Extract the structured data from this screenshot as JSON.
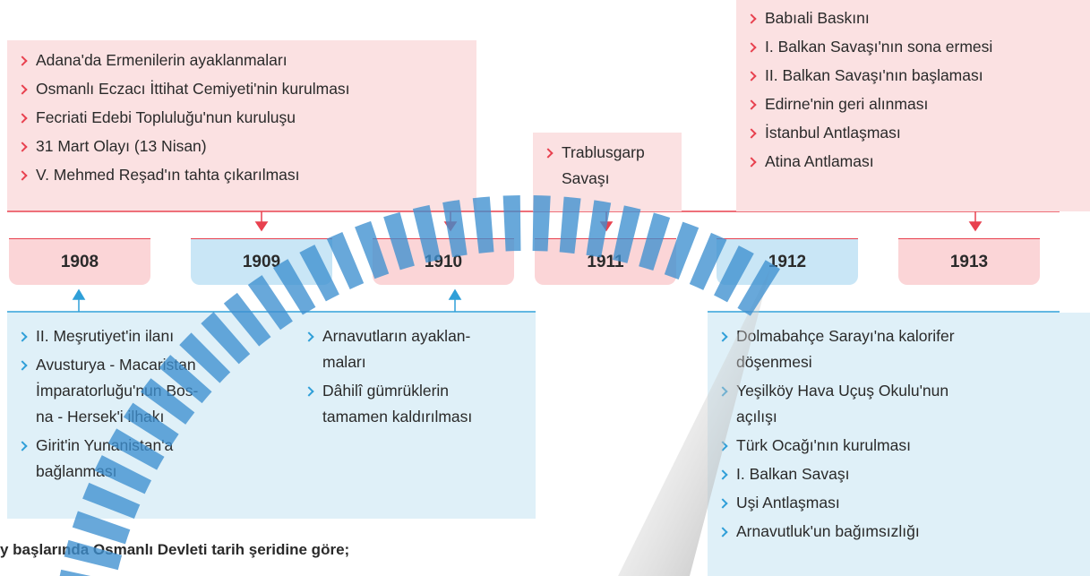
{
  "top_events": [
    {
      "items": [
        [
          "Adana'da Ermenilerin ayaklanmaları"
        ],
        [
          "Osmanlı Eczacı İttihat Cemiyeti'nin kurulması"
        ],
        [
          "Fecriati Edebi Topluluğu'nun kuruluşu"
        ],
        [
          "31 Mart Olayı (13 Nisan)"
        ],
        [
          "V. Mehmed Reşad'ın tahta çıkarılması"
        ]
      ]
    },
    {
      "items": [
        [
          "Trablusgarp",
          "Savaşı"
        ]
      ]
    },
    {
      "items": [
        [
          "Babıali Baskını"
        ],
        [
          "I. Balkan Savaşı'nın sona ermesi"
        ],
        [
          "II. Balkan Savaşı'nın başlaması"
        ],
        [
          "Edirne'nin geri alınması"
        ],
        [
          "İstanbul Antlaşması"
        ],
        [
          "Atina Antlaması"
        ]
      ]
    }
  ],
  "years": [
    "1908",
    "1909",
    "1910",
    "1911",
    "1912",
    "1913"
  ],
  "bottom_events": [
    {
      "columns": [
        [
          [
            "II. Meşrutiyet'in ilanı"
          ],
          [
            "Avusturya - Macaristan",
            "İmparatorluğu'nun Bos-",
            "na - Hersek'i ilhakı"
          ],
          [
            "Girit'in Yunanistan'a",
            "bağlanması"
          ]
        ],
        [
          [
            "Arnavutların ayaklan-",
            "maları"
          ],
          [
            "Dâhilî gümrüklerin",
            "tamamen kaldırılması"
          ]
        ]
      ]
    },
    {
      "columns": [
        [
          [
            "Dolmabahçe Sarayı'na kalorifer",
            "döşenmesi"
          ],
          [
            "Yeşilköy Hava Uçuş Okulu'nun",
            "açılışı"
          ],
          [
            "Türk Ocağı'nın kurulması"
          ],
          [
            "I. Balkan Savaşı"
          ],
          [
            "Uşi Antlaşması"
          ],
          [
            "Arnavutluk'un bağımsızlığı"
          ]
        ]
      ]
    }
  ],
  "footer": "y başlarında Osmanlı Devleti tarih şeridine göre;"
}
